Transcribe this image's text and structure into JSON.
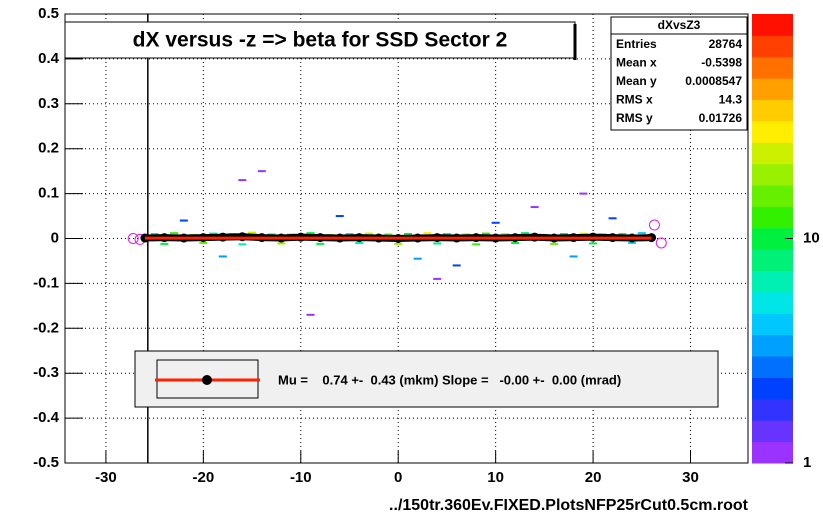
{
  "chart_data": {
    "type": "scatter",
    "title": "dX versus -z  => beta for SSD Sector 2",
    "x_label": "../150tr.360Ev.FIXED.PlotsNFP25rCut0.5cm.root",
    "xlim": [
      -34.2,
      35.9
    ],
    "ylim": [
      -0.5,
      0.5
    ],
    "xticks": [
      -30,
      -20,
      -10,
      0,
      10,
      20,
      30
    ],
    "yticks": [
      {
        "value": -0.5,
        "label": "-0.5"
      },
      {
        "value": -0.4,
        "label": "-0.4"
      },
      {
        "value": -0.3,
        "label": "-0.3"
      },
      {
        "value": -0.2,
        "label": "-0.2"
      },
      {
        "value": -0.1,
        "label": "-0.1"
      },
      0,
      {
        "value": 0.1,
        "label": "0.1"
      },
      {
        "value": 0.2,
        "label": "0.2"
      },
      {
        "value": 0.3,
        "label": "0.3"
      },
      {
        "value": 0.4,
        "label": "0.4"
      },
      {
        "value": 0.5,
        "label": "0.5"
      }
    ],
    "grid": true,
    "zlim": [
      1,
      100
    ],
    "zticks": [
      1,
      10
    ],
    "zlog": true,
    "palette": [
      "#9a33ff",
      "#6633ff",
      "#3333ff",
      "#0040ff",
      "#0070ff",
      "#00a0ff",
      "#00c8ff",
      "#00e6e6",
      "#00f0b4",
      "#00f078",
      "#00f040",
      "#33f000",
      "#66f000",
      "#99f000",
      "#ccf000",
      "#ffee00",
      "#ffcc00",
      "#ffa000",
      "#ff7000",
      "#ff4000",
      "#ff1000"
    ],
    "cut_x": -25.7,
    "stats": {
      "name": "dXvsZ3",
      "rows": [
        [
          "Entries",
          "28764"
        ],
        [
          "Mean x",
          "-0.5398"
        ],
        [
          "Mean y",
          "0.0008547"
        ],
        [
          "RMS x",
          "14.3"
        ],
        [
          "RMS y",
          "0.01726"
        ]
      ]
    },
    "legend": "Mu =    0.74 +-  0.43 (mkm) Slope =   -0.00 +-  0.00 (mrad)",
    "cells": {
      "x": [
        -25,
        -23,
        -21,
        -19,
        -17,
        -15,
        -13,
        -11,
        -9,
        -7,
        -5,
        -3,
        -1,
        1,
        3,
        5,
        7,
        9,
        11,
        13,
        15,
        17,
        19,
        21,
        23,
        25,
        -24,
        -20,
        -16,
        -12,
        -8,
        -4,
        0,
        4,
        8,
        12,
        16,
        20,
        24,
        -22,
        -18,
        -6,
        2,
        10,
        18,
        22,
        -14,
        6,
        14,
        -16,
        -9,
        19,
        4
      ],
      "y": [
        0.01,
        0.012,
        0.008,
        0.011,
        0.01,
        0.013,
        0.009,
        0.01,
        0.012,
        0.008,
        0.01,
        0.011,
        0.009,
        0.01,
        0.012,
        0.01,
        0.009,
        0.011,
        0.01,
        0.012,
        0.008,
        0.01,
        0.011,
        0.009,
        0.01,
        0.012,
        -0.012,
        -0.01,
        -0.013,
        -0.011,
        -0.012,
        -0.01,
        -0.012,
        -0.011,
        -0.013,
        -0.01,
        -0.012,
        -0.011,
        -0.01,
        0.04,
        -0.04,
        0.05,
        -0.045,
        0.035,
        -0.04,
        0.045,
        0.15,
        -0.06,
        0.07,
        0.13,
        -0.17,
        0.1,
        -0.09
      ],
      "counts": [
        8,
        12,
        20,
        6,
        15,
        25,
        10,
        30,
        9,
        18,
        5,
        22,
        14,
        11,
        27,
        7,
        19,
        13,
        24,
        8,
        16,
        10,
        28,
        6,
        12,
        4,
        9,
        14,
        7,
        18,
        11,
        6,
        20,
        8,
        13,
        10,
        15,
        9,
        5,
        2,
        3,
        2,
        3,
        2,
        3,
        2,
        1,
        2,
        1,
        1,
        1,
        1,
        1
      ]
    },
    "profile": {
      "x": [
        -26,
        -24,
        -22,
        -20,
        -18,
        -16,
        -14,
        -12,
        -10,
        -8,
        -6,
        -4,
        -2,
        0,
        2,
        4,
        6,
        8,
        10,
        12,
        14,
        16,
        18,
        20,
        22,
        24,
        26
      ],
      "y": [
        0.001,
        0.002,
        0.001,
        0.002,
        0.003,
        0.004,
        0.002,
        0.001,
        0.003,
        0.002,
        0.001,
        0.002,
        0.001,
        0.0,
        0.001,
        0.002,
        0.001,
        0.002,
        0.001,
        0.002,
        0.003,
        0.001,
        0.002,
        0.003,
        0.002,
        0.001,
        0.002
      ]
    },
    "outliers": {
      "x": [
        -27.2,
        -26.5,
        26.3,
        27.0
      ],
      "y": [
        0.0,
        -0.002,
        0.03,
        -0.01
      ]
    },
    "fit": {
      "x": [
        -26,
        26
      ],
      "y": [
        0.00074,
        0.00074
      ]
    }
  }
}
